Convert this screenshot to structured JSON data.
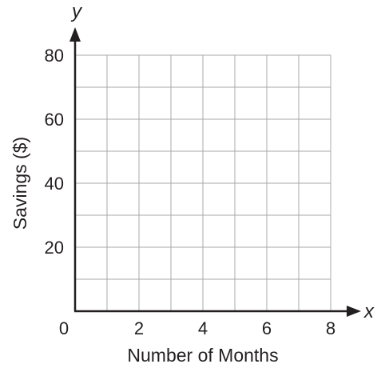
{
  "chart_data": {
    "type": "scatter",
    "title": "",
    "xlabel": "Number of Months",
    "ylabel": "Savings ($)",
    "x_axis_letter": "x",
    "y_axis_letter": "y",
    "xlim": [
      0,
      8
    ],
    "ylim": [
      0,
      80
    ],
    "x_grid_step": 1,
    "y_grid_step": 10,
    "x_ticks": [
      "0",
      "2",
      "4",
      "6",
      "8"
    ],
    "y_ticks": [
      "20",
      "40",
      "60",
      "80"
    ],
    "series": [],
    "grid": true,
    "colors": {
      "grid": "#a7a9ac",
      "axis": "#231f20",
      "text": "#231f20"
    }
  }
}
